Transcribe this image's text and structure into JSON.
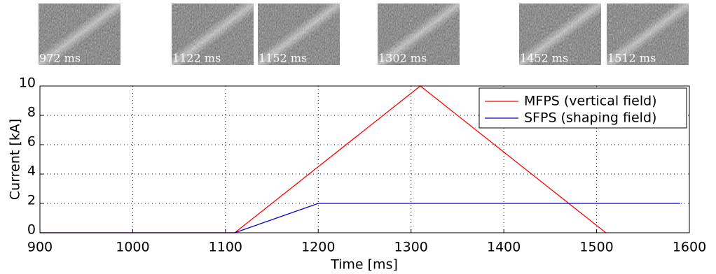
{
  "chart_data": {
    "type": "line",
    "thumbnails": [
      "972 ms",
      "1122 ms",
      "1152 ms",
      "1302 ms",
      "1452 ms",
      "1512 ms"
    ],
    "x_label": "Time [ms]",
    "y_label": "Current [kA]",
    "series": [
      {
        "name": "MFPS (vertical field)",
        "color": "#ff0000",
        "x": [
          900,
          1110,
          1310,
          1510
        ],
        "values": [
          0,
          0,
          10,
          0
        ]
      },
      {
        "name": "SFPS (shaping field)",
        "color": "#0000cc",
        "x": [
          900,
          1110,
          1200,
          1590
        ],
        "values": [
          0,
          0,
          2,
          2
        ]
      }
    ],
    "xlim": [
      900,
      1600
    ],
    "xticks": [
      900,
      1000,
      1100,
      1200,
      1300,
      1400,
      1500,
      1600
    ],
    "ylim": [
      0,
      10
    ],
    "yticks": [
      0,
      2,
      4,
      6,
      8,
      10
    ],
    "grid": true,
    "legend": "upper right"
  }
}
